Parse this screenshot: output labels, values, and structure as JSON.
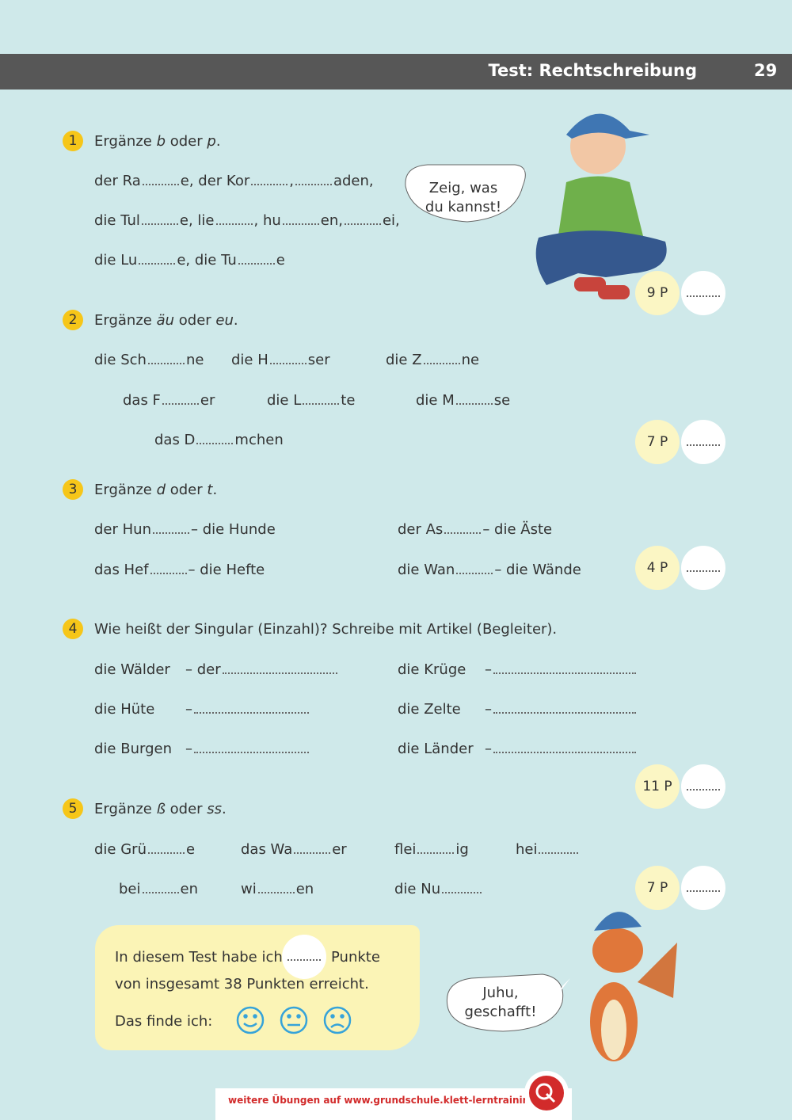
{
  "header": {
    "title": "Test: Rechtschreibung",
    "page": "29"
  },
  "sections": [
    {
      "number": "1",
      "instruction": [
        "Ergänze ",
        "b",
        " oder ",
        "p",
        "."
      ],
      "points": "9 P",
      "rows": [
        [
          [
            "der Ra",
            "e, der Kor",
            ",",
            "aden,"
          ]
        ],
        [
          [
            "die Tul",
            "e, lie",
            ", hu",
            "en,",
            "ei,"
          ]
        ],
        [
          [
            "die Lu",
            "e, die Tu",
            "e"
          ]
        ]
      ]
    },
    {
      "number": "2",
      "instruction": [
        "Ergänze ",
        "äu",
        " oder ",
        "eu",
        "."
      ],
      "points": "7 P",
      "rows": [
        [
          [
            "die Sch",
            "ne"
          ],
          [
            "die H",
            "ser"
          ],
          [
            "die Z",
            "ne"
          ]
        ],
        [
          [
            "das F",
            "er"
          ],
          [
            "die L",
            "te"
          ],
          [
            "die M",
            "se"
          ]
        ],
        [
          [
            "das D",
            "mchen"
          ]
        ]
      ]
    },
    {
      "number": "3",
      "instruction": [
        "Ergänze ",
        "d",
        " oder ",
        "t",
        "."
      ],
      "points": "4 P",
      "rows": [
        [
          [
            "der Hun",
            "– die Hunde"
          ],
          [
            "der As",
            "– die Äste"
          ]
        ],
        [
          [
            "das Hef",
            "– die Hefte"
          ],
          [
            "die Wan",
            "– die Wände"
          ]
        ]
      ]
    },
    {
      "number": "4",
      "instruction": [
        "Wie heißt der Singular (Einzahl)? Schreibe mit Artikel (Begleiter)."
      ],
      "points": "11 P",
      "rows": [
        [
          [
            "die Wälder"
          ],
          [
            "– der"
          ],
          [
            "die Krüge"
          ],
          [
            "–"
          ]
        ],
        [
          [
            "die Hüte"
          ],
          [
            "–"
          ],
          [
            "die Zelte"
          ],
          [
            "–"
          ]
        ],
        [
          [
            "die Burgen"
          ],
          [
            "–"
          ],
          [
            "die Länder"
          ],
          [
            "–"
          ]
        ]
      ]
    },
    {
      "number": "5",
      "instruction": [
        "Ergänze ",
        "ß",
        " oder ",
        "ss",
        "."
      ],
      "points": "7 P",
      "rows": [
        [
          [
            "die Grü",
            "e"
          ],
          [
            "das Wa",
            "er"
          ],
          [
            "flei",
            "ig"
          ],
          [
            "hei"
          ]
        ],
        [
          [
            "bei",
            "en"
          ],
          [
            "wi",
            "en"
          ],
          [
            "die Nu"
          ]
        ]
      ]
    }
  ],
  "bubbles": {
    "boy": "Zeig, was du kannst!",
    "dragon": "Juhu, geschafft!"
  },
  "summary": {
    "line1_start": "In diesem Test habe ich",
    "line1_end": "Punkte",
    "line2": "von insgesamt 38 Punkten erreicht.",
    "rating": "Das finde ich:"
  },
  "footer": "weitere Übungen auf www.grundschule.klett-lerntraining.de"
}
